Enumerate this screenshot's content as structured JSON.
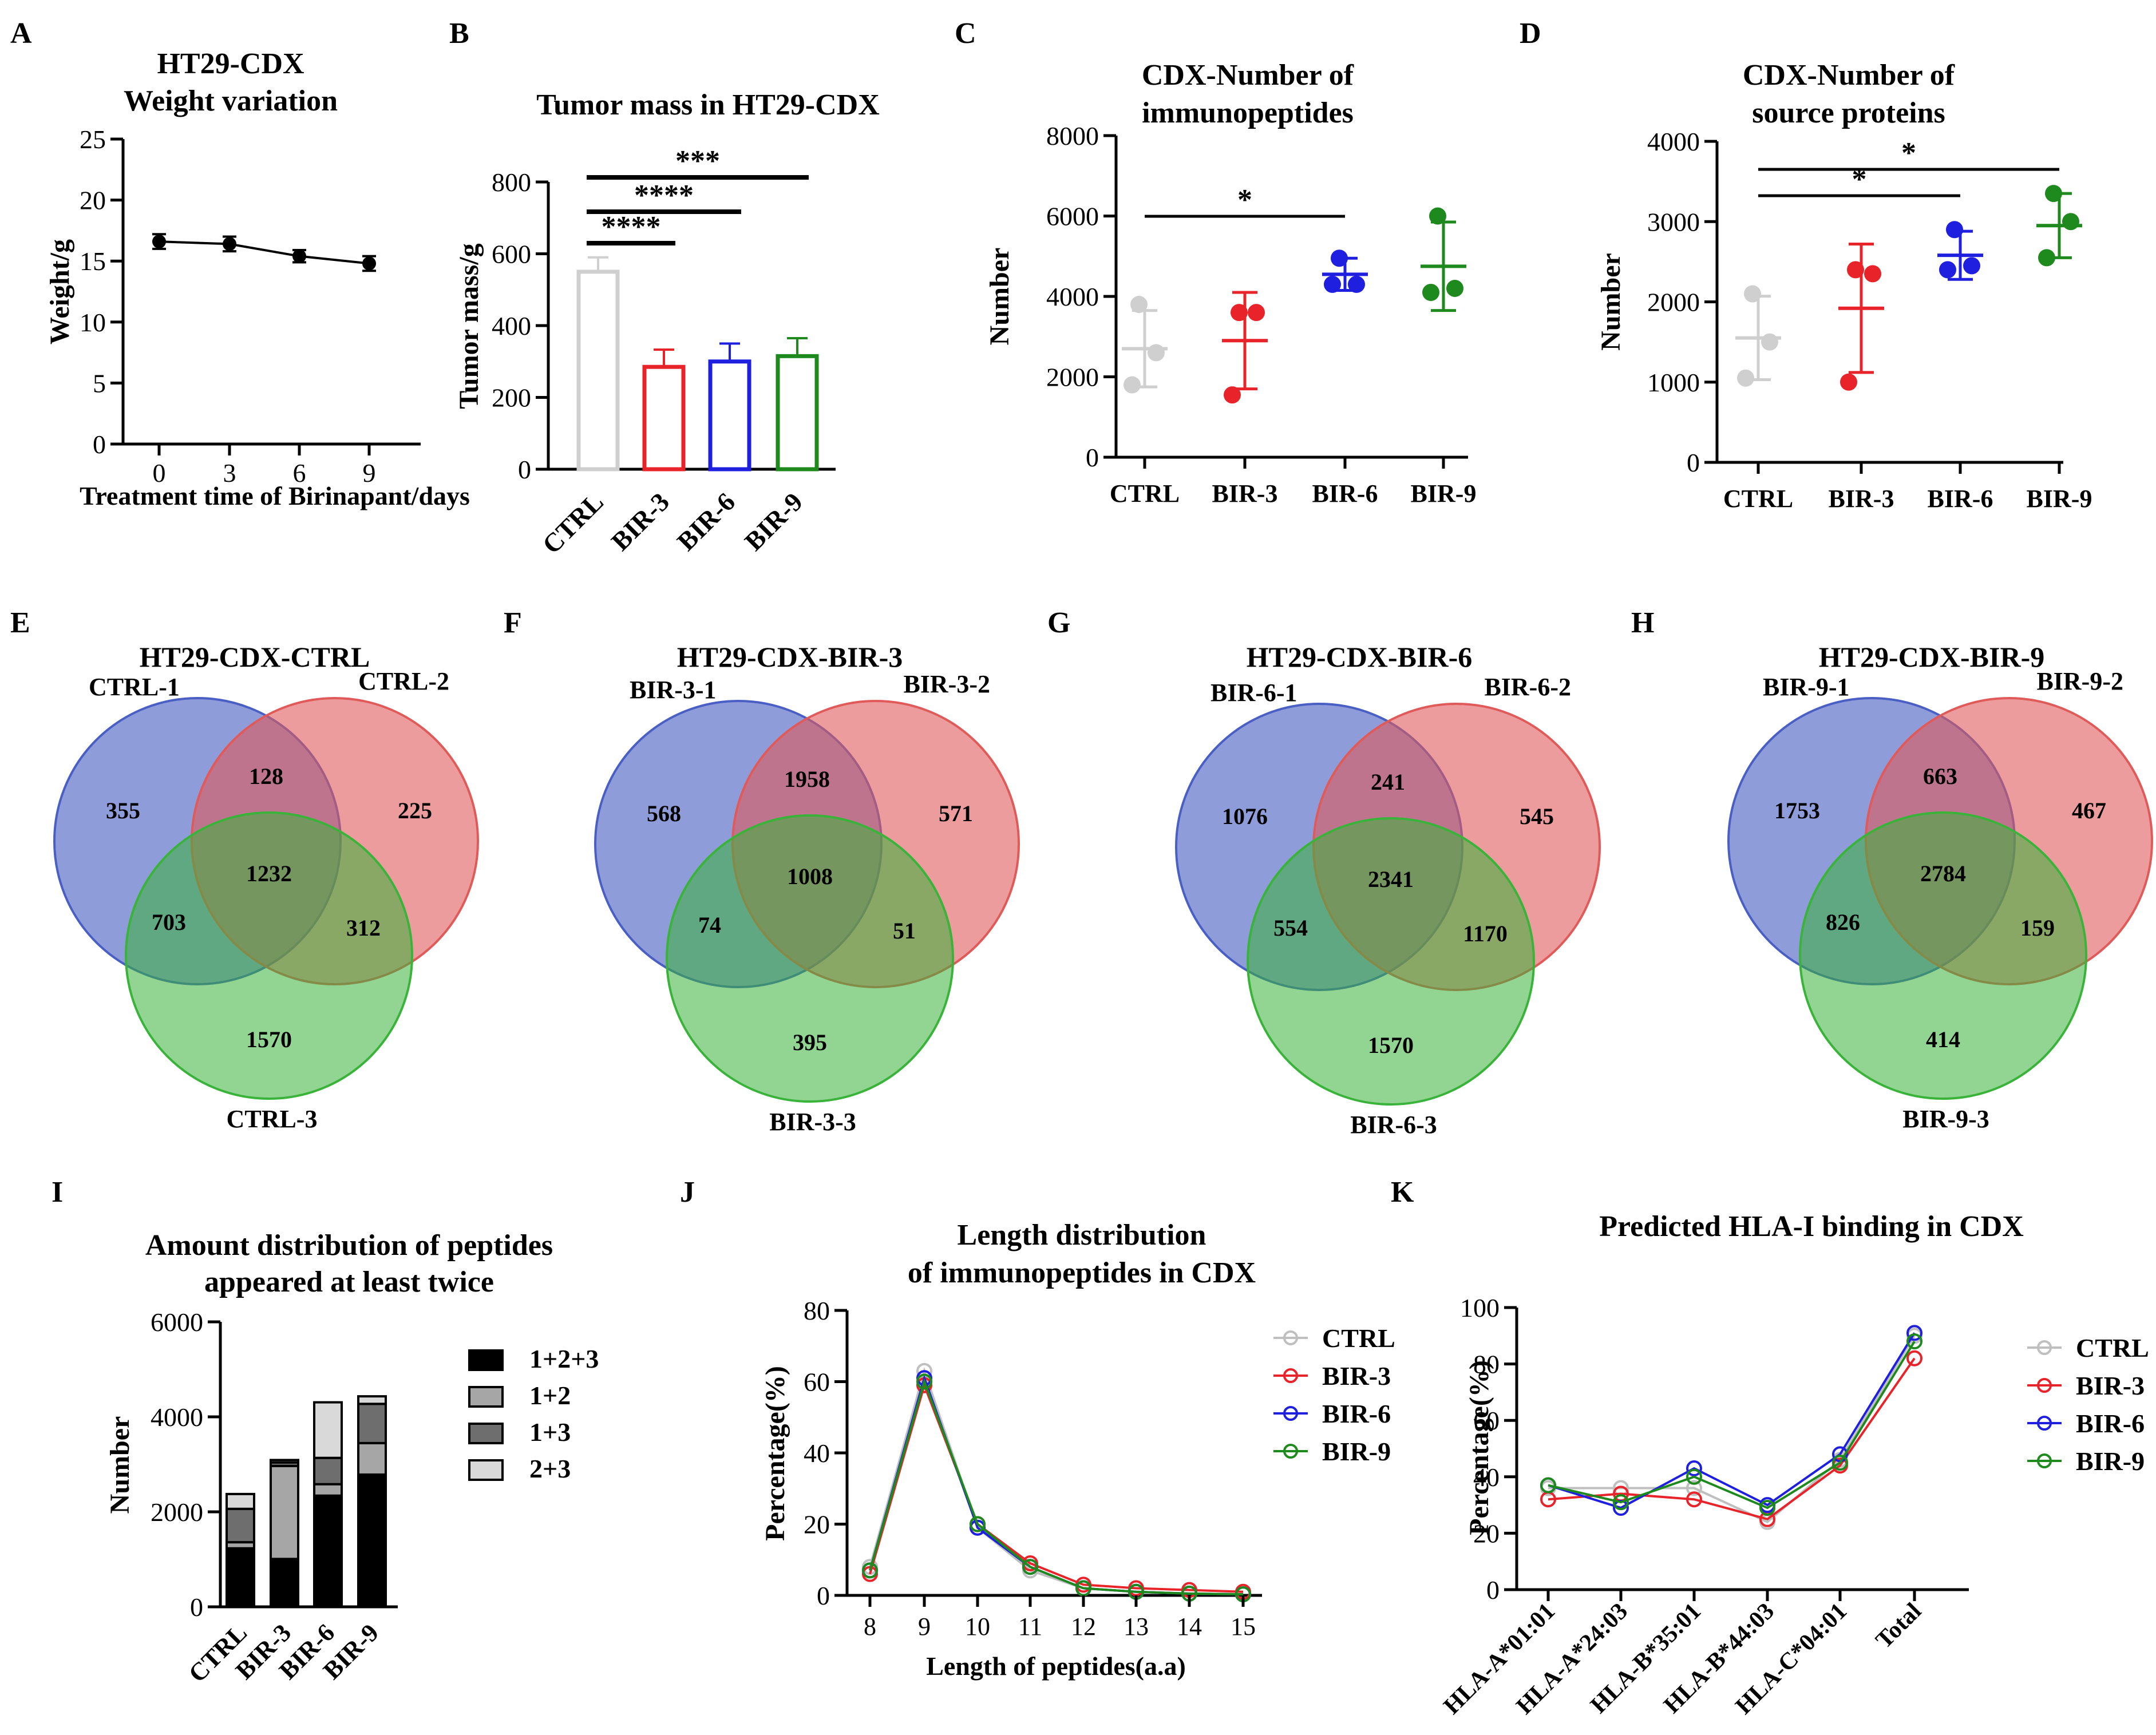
{
  "colors": {
    "ctrl": "#cfcfcf",
    "bir3": "#e8242a",
    "bir6": "#1f1fe0",
    "bir9": "#1e8a1e",
    "venn1": "#4a5fc4",
    "venn2": "#e05a5a",
    "venn3": "#39b339",
    "stack1": "#000000",
    "stack2": "#a6a6a6",
    "stack3": "#6e6e6e",
    "stack4": "#d9d9d9"
  },
  "chart_data": [
    {
      "id": "A",
      "panel_label": "A",
      "type": "line",
      "title": [
        "HT29-CDX",
        "Weight variation"
      ],
      "xlabel": "Treatment time of Birinapant/days",
      "ylabel": "Weight/g",
      "x": [
        0,
        3,
        6,
        9
      ],
      "y": [
        16.6,
        16.4,
        15.4,
        14.8
      ],
      "err": [
        0.6,
        0.6,
        0.5,
        0.6
      ],
      "ylim": [
        0,
        25
      ],
      "yticks": [
        0,
        5,
        10,
        15,
        20,
        25
      ],
      "xticks": [
        "0",
        "3",
        "6",
        "9"
      ]
    },
    {
      "id": "B",
      "panel_label": "B",
      "type": "bar",
      "title": "Tumor mass in HT29-CDX",
      "ylabel": "Tumor mass/g",
      "categories": [
        "CTRL",
        "BIR-3",
        "BIR-6",
        "BIR-9"
      ],
      "values": [
        550,
        285,
        300,
        315
      ],
      "err": [
        40,
        48,
        50,
        50
      ],
      "ylim": [
        0,
        800
      ],
      "yticks": [
        0,
        200,
        400,
        600,
        800
      ],
      "significance": [
        {
          "from": 0,
          "to": 1,
          "label": "****"
        },
        {
          "from": 0,
          "to": 2,
          "label": "****"
        },
        {
          "from": 0,
          "to": 3,
          "label": "***"
        }
      ]
    },
    {
      "id": "C",
      "panel_label": "C",
      "type": "scatter",
      "title": [
        "CDX-Number of",
        "immunopeptides"
      ],
      "ylabel": "Number",
      "categories": [
        "CTRL",
        "BIR-3",
        "BIR-6",
        "BIR-9"
      ],
      "points": [
        [
          3800,
          2600,
          1800
        ],
        [
          3600,
          3600,
          1550
        ],
        [
          4950,
          4300,
          4300
        ],
        [
          6000,
          4200,
          4100
        ]
      ],
      "mean": [
        2700,
        2900,
        4550,
        4750
      ],
      "sd": [
        950,
        1200,
        400,
        1100
      ],
      "ylim": [
        0,
        8000
      ],
      "yticks": [
        0,
        2000,
        4000,
        6000,
        8000
      ],
      "significance": [
        {
          "from": 0,
          "to": 2,
          "label": "*"
        }
      ]
    },
    {
      "id": "D",
      "panel_label": "D",
      "type": "scatter",
      "title": [
        "CDX-Number of",
        "source proteins"
      ],
      "ylabel": "Number",
      "categories": [
        "CTRL",
        "BIR-3",
        "BIR-6",
        "BIR-9"
      ],
      "points": [
        [
          2100,
          1500,
          1050
        ],
        [
          2400,
          2350,
          1000
        ],
        [
          2900,
          2450,
          2400
        ],
        [
          3350,
          3000,
          2550
        ]
      ],
      "mean": [
        1550,
        1920,
        2580,
        2950
      ],
      "sd": [
        520,
        800,
        300,
        400
      ],
      "ylim": [
        0,
        4000
      ],
      "yticks": [
        0,
        1000,
        2000,
        3000,
        4000
      ],
      "significance": [
        {
          "from": 0,
          "to": 2,
          "label": "*"
        },
        {
          "from": 0,
          "to": 3,
          "label": "*"
        }
      ]
    },
    {
      "id": "E",
      "panel_label": "E",
      "type": "venn",
      "title": "HT29-CDX-CTRL",
      "sets": [
        "CTRL-1",
        "CTRL-2",
        "CTRL-3"
      ],
      "regions": {
        "a": "355",
        "b": "225",
        "c": "1570",
        "ab": "128",
        "ac": "703",
        "bc": "312",
        "abc": "1232"
      }
    },
    {
      "id": "F",
      "panel_label": "F",
      "type": "venn",
      "title": "HT29-CDX-BIR-3",
      "sets": [
        "BIR-3-1",
        "BIR-3-2",
        "BIR-3-3"
      ],
      "regions": {
        "a": "568",
        "b": "571",
        "c": "395",
        "ab": "1958",
        "ac": "74",
        "bc": "51",
        "abc": "1008"
      }
    },
    {
      "id": "G",
      "panel_label": "G",
      "type": "venn",
      "title": "HT29-CDX-BIR-6",
      "sets": [
        "BIR-6-1",
        "BIR-6-2",
        "BIR-6-3"
      ],
      "regions": {
        "a": "1076",
        "b": "545",
        "c": "1570",
        "ab": "241",
        "ac": "554",
        "bc": "1170",
        "abc": "2341"
      }
    },
    {
      "id": "H",
      "panel_label": "H",
      "type": "venn",
      "title": "HT29-CDX-BIR-9",
      "sets": [
        "BIR-9-1",
        "BIR-9-2",
        "BIR-9-3"
      ],
      "regions": {
        "a": "1753",
        "b": "467",
        "c": "414",
        "ab": "663",
        "ac": "826",
        "bc": "159",
        "abc": "2784"
      }
    },
    {
      "id": "I",
      "panel_label": "I",
      "type": "bar",
      "title": [
        "Amount distribution of peptides",
        "appeared at least twice"
      ],
      "ylabel": "Number",
      "categories": [
        "CTRL",
        "BIR-3",
        "BIR-6",
        "BIR-9"
      ],
      "series": [
        {
          "name": "1+2+3",
          "values": [
            1232,
            1008,
            2341,
            2784
          ]
        },
        {
          "name": "1+2",
          "values": [
            128,
            1958,
            241,
            663
          ]
        },
        {
          "name": "1+3",
          "values": [
            703,
            74,
            554,
            826
          ]
        },
        {
          "name": "2+3",
          "values": [
            312,
            51,
            1170,
            159
          ]
        }
      ],
      "ylim": [
        0,
        6000
      ],
      "yticks": [
        0,
        2000,
        4000,
        6000
      ]
    },
    {
      "id": "J",
      "panel_label": "J",
      "type": "line",
      "title": [
        "Length distribution",
        "of immunopeptides in CDX"
      ],
      "xlabel": "Length of peptides(a.a)",
      "ylabel": "Percentage(%)",
      "x": [
        8,
        9,
        10,
        11,
        12,
        13,
        14,
        15
      ],
      "series": [
        {
          "name": "CTRL",
          "values": [
            8,
            63,
            19,
            7,
            2,
            1,
            0.5,
            0.3
          ]
        },
        {
          "name": "BIR-3",
          "values": [
            6,
            59,
            20,
            9,
            3,
            2,
            1.5,
            1
          ]
        },
        {
          "name": "BIR-6",
          "values": [
            7,
            61,
            19,
            8,
            2,
            1,
            0.5,
            0.3
          ]
        },
        {
          "name": "BIR-9",
          "values": [
            7,
            60,
            20,
            8,
            2,
            1,
            0.5,
            0.3
          ]
        }
      ],
      "ylim": [
        0,
        80
      ],
      "yticks": [
        0,
        20,
        40,
        60,
        80
      ]
    },
    {
      "id": "K",
      "panel_label": "K",
      "type": "line",
      "title": "Predicted HLA-I binding in CDX",
      "ylabel": "Percentage(%)",
      "categories": [
        "HLA-A*01:01",
        "HLA-A*24:03",
        "HLA-B*35:01",
        "HLA-B*44:03",
        "HLA-C*04:01",
        "Total"
      ],
      "series": [
        {
          "name": "CTRL",
          "values": [
            36,
            36,
            36,
            24,
            46,
            90
          ]
        },
        {
          "name": "BIR-3",
          "values": [
            32,
            34,
            32,
            25,
            44,
            82
          ]
        },
        {
          "name": "BIR-6",
          "values": [
            37,
            29,
            43,
            30,
            48,
            91
          ]
        },
        {
          "name": "BIR-9",
          "values": [
            37,
            31,
            40,
            29,
            45,
            88
          ]
        }
      ],
      "ylim": [
        0,
        100
      ],
      "yticks": [
        0,
        20,
        40,
        60,
        80,
        100
      ]
    }
  ]
}
